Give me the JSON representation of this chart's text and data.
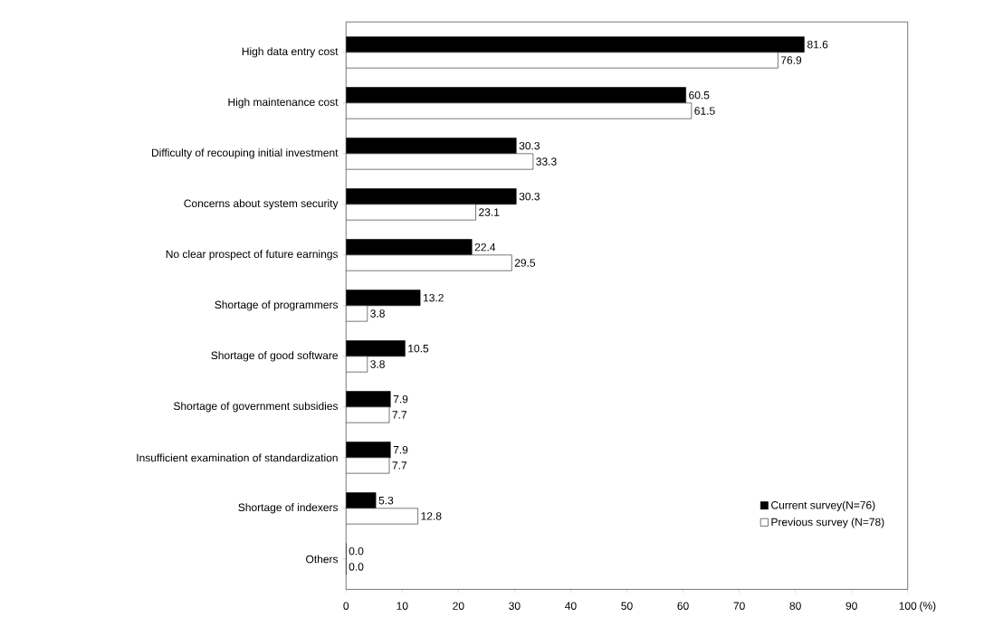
{
  "chart_data": {
    "type": "bar",
    "orientation": "horizontal",
    "xlabel": "(%)",
    "categories": [
      "High data entry cost",
      "High maintenance cost",
      "Difficulty of recouping initial investment",
      "Concerns about system security",
      "No clear prospect of future earnings",
      "Shortage of programmers",
      "Shortage of good software",
      "Shortage of government subsidies",
      "Insufficient examination of standardization",
      "Shortage of indexers",
      "Others"
    ],
    "series": [
      {
        "name": "Current survey(N=76)",
        "color": "#000000",
        "values": [
          81.6,
          60.5,
          30.3,
          30.3,
          22.4,
          13.2,
          10.5,
          7.9,
          7.9,
          5.3,
          0.0
        ],
        "value_labels": [
          "81.6",
          "60.5",
          "30.3",
          "30.3",
          "22.4",
          "13.2",
          "10.5",
          "7.9",
          "7.9",
          "5.3",
          "0.0"
        ]
      },
      {
        "name": "Previous survey (N=78)",
        "color": "#ffffff",
        "values": [
          76.9,
          61.5,
          33.3,
          23.1,
          29.5,
          3.8,
          3.8,
          7.7,
          7.7,
          12.8,
          0.0
        ],
        "value_labels": [
          "76.9",
          "61.5",
          "33.3",
          "23.1",
          "29.5",
          "3.8",
          "3.8",
          "7.7",
          "7.7",
          "12.8",
          "0.0"
        ]
      }
    ],
    "xlim": [
      0,
      100
    ],
    "xticks": [
      0,
      10,
      20,
      30,
      40,
      50,
      60,
      70,
      80,
      90,
      100
    ],
    "legend": "bottom right",
    "grid": false
  }
}
